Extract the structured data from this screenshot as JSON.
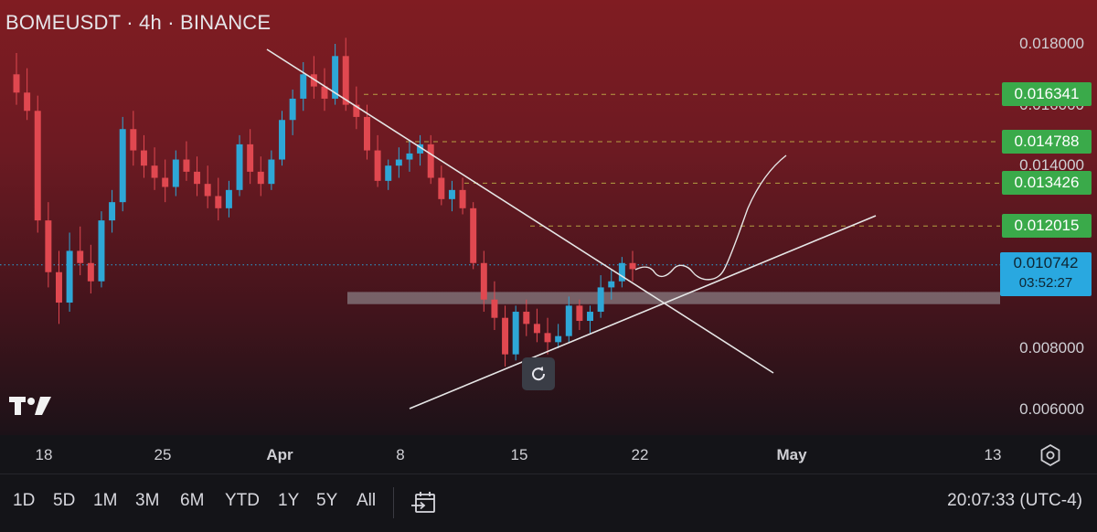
{
  "header": {
    "title": "BOMEUSDT · 4h · BINANCE"
  },
  "chart_data": {
    "type": "candlestick",
    "symbol": "BOMEUSDT",
    "interval": "4h",
    "exchange": "BINANCE",
    "ylim": [
      0.0053,
      0.0196
    ],
    "y_ticks": [
      {
        "value": 0.018,
        "label": "0.018000"
      },
      {
        "value": 0.016,
        "label": "0.016000"
      },
      {
        "value": 0.014,
        "label": "0.014000"
      },
      {
        "value": 0.008,
        "label": "0.008000"
      },
      {
        "value": 0.006,
        "label": "0.006000"
      }
    ],
    "x_ticks": [
      "18",
      "25",
      "Apr",
      "8",
      "15",
      "22",
      "May",
      "13"
    ],
    "levels": [
      {
        "value": 0.016341,
        "label": "0.016341",
        "color": "#3aaa4a"
      },
      {
        "value": 0.014788,
        "label": "0.014788",
        "color": "#3aaa4a"
      },
      {
        "value": 0.013426,
        "label": "0.013426",
        "color": "#3aaa4a"
      },
      {
        "value": 0.012015,
        "label": "0.012015",
        "color": "#3aaa4a"
      }
    ],
    "current_price": {
      "value": 0.010742,
      "label": "0.010742",
      "countdown": "03:52:27",
      "color": "#29a8e0"
    },
    "support_zone": [
      0.00945,
      0.00985
    ],
    "candle_colors": {
      "up": "#2ea7d6",
      "down": "#e04850"
    },
    "candles": [
      [
        0.017,
        0.0177,
        0.016,
        0.0164
      ],
      [
        0.0164,
        0.0172,
        0.0155,
        0.0158
      ],
      [
        0.0158,
        0.0163,
        0.0118,
        0.0122
      ],
      [
        0.0122,
        0.0128,
        0.01,
        0.0105
      ],
      [
        0.0105,
        0.0112,
        0.0088,
        0.0095
      ],
      [
        0.0095,
        0.0118,
        0.0092,
        0.0112
      ],
      [
        0.0112,
        0.012,
        0.0104,
        0.0108
      ],
      [
        0.0108,
        0.0114,
        0.0098,
        0.0102
      ],
      [
        0.0102,
        0.0125,
        0.01,
        0.0122
      ],
      [
        0.0122,
        0.0132,
        0.0118,
        0.0128
      ],
      [
        0.0128,
        0.0156,
        0.0125,
        0.0152
      ],
      [
        0.0152,
        0.0158,
        0.014,
        0.0145
      ],
      [
        0.0145,
        0.015,
        0.0136,
        0.014
      ],
      [
        0.014,
        0.0146,
        0.0132,
        0.0136
      ],
      [
        0.0136,
        0.0142,
        0.0128,
        0.0133
      ],
      [
        0.0133,
        0.0145,
        0.013,
        0.0142
      ],
      [
        0.0142,
        0.0148,
        0.0135,
        0.0138
      ],
      [
        0.0138,
        0.0143,
        0.013,
        0.0134
      ],
      [
        0.0134,
        0.014,
        0.0126,
        0.013
      ],
      [
        0.013,
        0.0136,
        0.0122,
        0.0126
      ],
      [
        0.0126,
        0.0135,
        0.0123,
        0.0132
      ],
      [
        0.0132,
        0.015,
        0.013,
        0.0147
      ],
      [
        0.0147,
        0.0152,
        0.0134,
        0.0138
      ],
      [
        0.0138,
        0.0143,
        0.013,
        0.0134
      ],
      [
        0.0134,
        0.0145,
        0.0132,
        0.0142
      ],
      [
        0.0142,
        0.0158,
        0.014,
        0.0155
      ],
      [
        0.0155,
        0.0165,
        0.015,
        0.0162
      ],
      [
        0.0162,
        0.0174,
        0.0158,
        0.017
      ],
      [
        0.017,
        0.0176,
        0.0162,
        0.0166
      ],
      [
        0.0166,
        0.0172,
        0.0158,
        0.0162
      ],
      [
        0.0162,
        0.018,
        0.016,
        0.0176
      ],
      [
        0.0176,
        0.0182,
        0.0158,
        0.016
      ],
      [
        0.016,
        0.0166,
        0.0152,
        0.0156
      ],
      [
        0.0156,
        0.016,
        0.0142,
        0.0145
      ],
      [
        0.0145,
        0.015,
        0.0133,
        0.0135
      ],
      [
        0.0135,
        0.0142,
        0.0132,
        0.014
      ],
      [
        0.014,
        0.0146,
        0.0136,
        0.0142
      ],
      [
        0.0142,
        0.0148,
        0.0138,
        0.0144
      ],
      [
        0.0144,
        0.015,
        0.014,
        0.0147
      ],
      [
        0.0147,
        0.015,
        0.0134,
        0.0136
      ],
      [
        0.0136,
        0.014,
        0.0127,
        0.0129
      ],
      [
        0.0129,
        0.0135,
        0.0125,
        0.0132
      ],
      [
        0.0132,
        0.0136,
        0.0124,
        0.0126
      ],
      [
        0.0126,
        0.0128,
        0.0106,
        0.0108
      ],
      [
        0.0108,
        0.0112,
        0.0092,
        0.0096
      ],
      [
        0.0096,
        0.0102,
        0.0086,
        0.009
      ],
      [
        0.009,
        0.0094,
        0.0074,
        0.0078
      ],
      [
        0.0078,
        0.0094,
        0.0076,
        0.0092
      ],
      [
        0.0092,
        0.0096,
        0.0084,
        0.0088
      ],
      [
        0.0088,
        0.0093,
        0.0082,
        0.0085
      ],
      [
        0.0085,
        0.009,
        0.0078,
        0.0082
      ],
      [
        0.0082,
        0.0088,
        0.008,
        0.0084
      ],
      [
        0.0084,
        0.0097,
        0.0082,
        0.0094
      ],
      [
        0.0094,
        0.0096,
        0.0086,
        0.0089
      ],
      [
        0.0089,
        0.0094,
        0.0085,
        0.0092
      ],
      [
        0.0092,
        0.0104,
        0.009,
        0.01
      ],
      [
        0.01,
        0.0106,
        0.0096,
        0.0102
      ],
      [
        0.0102,
        0.011,
        0.01,
        0.0108
      ],
      [
        0.0108,
        0.0112,
        0.0102,
        0.0106
      ]
    ],
    "notes": "Hand-drawn descending trendline, ascending trendline, grey support zone and a curved projection path."
  },
  "time_axis": {
    "settings_icon": "settings-hexagon-icon"
  },
  "bottom_bar": {
    "ranges": [
      "1D",
      "5D",
      "1M",
      "3M",
      "6M",
      "YTD",
      "1Y",
      "5Y",
      "All"
    ],
    "calendar_icon": "calendar-range-icon",
    "clock": "20:07:33 (UTC-4)"
  },
  "logo_icon": "tradingview-logo-icon",
  "reset_icon": "reset-rotate-icon"
}
